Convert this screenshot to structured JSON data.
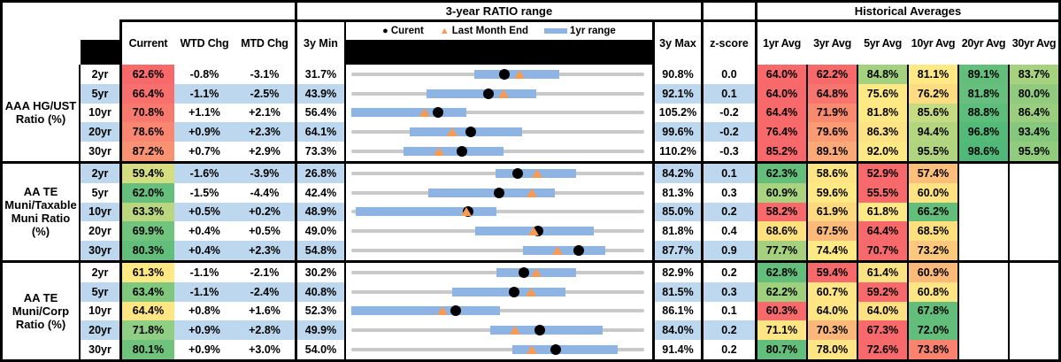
{
  "colors": {
    "stripe_blue": "#BDD7EE",
    "track_gray": "#C9C9C9",
    "range_bar_blue": "#8DB4E2",
    "marker_orange": "#F79B54",
    "marker_black": "#000000"
  },
  "header": {
    "range_section_title": "3-year RATIO range",
    "averages_section_title": "Historical Averages",
    "current": "Current",
    "wtd": "WTD Chg",
    "mtd": "MTD Chg",
    "min3y": "3y Min",
    "max3y": "3y Max",
    "zscore": "z-score",
    "avg_cols": [
      "1yr Avg",
      "3yr Avg",
      "5yr Avg",
      "10yr Avg",
      "20yr Avg",
      "30yr Avg"
    ]
  },
  "legend": {
    "current_label": "Curent",
    "last_month_end_label": "Last Month End",
    "range_label": "1yr range"
  },
  "chart_data": {
    "type": "table",
    "description": "Municipal bond ratio monitor: current ratios, weekly/monthly changes, 3-year min/max with 1yr-range dot plot (black dot = current, orange triangle = last month end, blue bar = 1yr range on an axis from 3y Min to 3y Max), z-scores and historical averages heatmap.",
    "groups": [
      {
        "label": "AAA HG/UST\nRatio (%)",
        "rows": [
          {
            "tenor": "2yr",
            "current": "62.6%",
            "current_bg": "#F8696B",
            "wtd_chg": "-0.8%",
            "mtd_chg": "-3.1%",
            "min_3y": "31.7%",
            "max_3y": "90.8%",
            "z_score": "0.0",
            "range_plot": {
              "axis_min": 31.7,
              "axis_max": 90.8,
              "current": 62.6,
              "last_month_end": 65.7,
              "range_1yr": [
                56.5,
                73.7
              ]
            },
            "avgs": [
              [
                "64.0%",
                "#F8696B"
              ],
              [
                "62.2%",
                "#F8696B"
              ],
              [
                "84.8%",
                "#A3D17F"
              ],
              [
                "81.1%",
                "#FFE984"
              ],
              [
                "89.1%",
                "#63BE7B"
              ],
              [
                "83.7%",
                "#A6D27F"
              ]
            ]
          },
          {
            "tenor": "5yr",
            "current": "66.4%",
            "current_bg": "#F8706D",
            "wtd_chg": "-1.1%",
            "mtd_chg": "-2.5%",
            "min_3y": "43.9%",
            "max_3y": "92.1%",
            "z_score": "0.1",
            "range_plot": {
              "axis_min": 43.9,
              "axis_max": 92.1,
              "current": 66.4,
              "last_month_end": 68.9,
              "range_1yr": [
                56.3,
                74.3
              ]
            },
            "avgs": [
              [
                "64.0%",
                "#F8696B"
              ],
              [
                "64.8%",
                "#F8746E"
              ],
              [
                "75.6%",
                "#FFE984"
              ],
              [
                "76.2%",
                "#FEDD82"
              ],
              [
                "81.8%",
                "#66BF7C"
              ],
              [
                "80.0%",
                "#8FCA7E"
              ]
            ]
          },
          {
            "tenor": "10yr",
            "current": "70.8%",
            "current_bg": "#F87A6F",
            "wtd_chg": "+1.1%",
            "mtd_chg": "+2.1%",
            "min_3y": "56.4%",
            "max_3y": "105.2%",
            "z_score": "-0.2",
            "range_plot": {
              "axis_min": 56.4,
              "axis_max": 105.2,
              "current": 70.8,
              "last_month_end": 68.7,
              "range_1yr": [
                56.4,
                75.5
              ]
            },
            "avgs": [
              [
                "64.4%",
                "#F8696B"
              ],
              [
                "71.9%",
                "#F98A70"
              ],
              [
                "81.8%",
                "#FFE984"
              ],
              [
                "85.6%",
                "#C4DB82"
              ],
              [
                "88.8%",
                "#5DBD7A"
              ],
              [
                "86.4%",
                "#9ACE7E"
              ]
            ]
          },
          {
            "tenor": "20yr",
            "current": "78.6%",
            "current_bg": "#F98671",
            "wtd_chg": "+0.9%",
            "mtd_chg": "+2.3%",
            "min_3y": "64.1%",
            "max_3y": "99.6%",
            "z_score": "-0.2",
            "range_plot": {
              "axis_min": 64.1,
              "axis_max": 99.6,
              "current": 78.6,
              "last_month_end": 76.3,
              "range_1yr": [
                71.2,
                84.8
              ]
            },
            "avgs": [
              [
                "76.4%",
                "#F8696B"
              ],
              [
                "79.6%",
                "#FA9B74"
              ],
              [
                "86.3%",
                "#FDE383"
              ],
              [
                "94.4%",
                "#B4D57F"
              ],
              [
                "96.8%",
                "#53BA79"
              ],
              [
                "93.4%",
                "#85C77D"
              ]
            ]
          },
          {
            "tenor": "30yr",
            "current": "87.2%",
            "current_bg": "#F99273",
            "wtd_chg": "+0.7%",
            "mtd_chg": "+2.9%",
            "min_3y": "73.3%",
            "max_3y": "110.2%",
            "z_score": "-0.3",
            "range_plot": {
              "axis_min": 73.3,
              "axis_max": 110.2,
              "current": 87.2,
              "last_month_end": 84.3,
              "range_1yr": [
                79.9,
                92.5
              ]
            },
            "avgs": [
              [
                "85.2%",
                "#F8696B"
              ],
              [
                "89.1%",
                "#FBAA77"
              ],
              [
                "92.0%",
                "#FFE984"
              ],
              [
                "95.5%",
                "#B0D47F"
              ],
              [
                "98.6%",
                "#50B979"
              ],
              [
                "95.9%",
                "#90CB7E"
              ]
            ]
          }
        ]
      },
      {
        "label": "AA TE\nMuni/Taxable\nMuni Ratio\n(%)",
        "rows": [
          {
            "tenor": "2yr",
            "current": "59.4%",
            "current_bg": "#D5DD81",
            "wtd_chg": "-1.6%",
            "mtd_chg": "-3.9%",
            "min_3y": "26.8%",
            "max_3y": "84.2%",
            "z_score": "0.1",
            "range_plot": {
              "axis_min": 26.8,
              "axis_max": 84.2,
              "current": 59.4,
              "last_month_end": 63.3,
              "range_1yr": [
                55.1,
                70.8
              ]
            },
            "avgs": [
              [
                "62.3%",
                "#63BE7B"
              ],
              [
                "58.6%",
                "#FFE483"
              ],
              [
                "52.9%",
                "#F8696B"
              ],
              [
                "57.4%",
                "#FCBF7B"
              ],
              null,
              null
            ]
          },
          {
            "tenor": "5yr",
            "current": "62.0%",
            "current_bg": "#66BF7C",
            "wtd_chg": "-1.5%",
            "mtd_chg": "-4.4%",
            "min_3y": "42.4%",
            "max_3y": "81.3%",
            "z_score": "0.3",
            "range_plot": {
              "axis_min": 42.4,
              "axis_max": 81.3,
              "current": 62.0,
              "last_month_end": 66.4,
              "range_1yr": [
                52.6,
                69.4
              ]
            },
            "avgs": [
              [
                "60.9%",
                "#A9D37F"
              ],
              [
                "59.6%",
                "#FFE984"
              ],
              [
                "55.5%",
                "#F8696B"
              ],
              [
                "60.0%",
                "#FFE281"
              ],
              null,
              null
            ]
          },
          {
            "tenor": "10yr",
            "current": "63.3%",
            "current_bg": "#BAD780",
            "wtd_chg": "+0.5%",
            "mtd_chg": "+0.2%",
            "min_3y": "48.9%",
            "max_3y": "85.0%",
            "z_score": "0.2",
            "range_plot": {
              "axis_min": 48.9,
              "axis_max": 85.0,
              "current": 63.3,
              "last_month_end": 63.1,
              "range_1yr": [
                49.4,
                66.8
              ]
            },
            "avgs": [
              [
                "58.2%",
                "#F8696B"
              ],
              [
                "61.9%",
                "#FFD97E"
              ],
              [
                "61.8%",
                "#FFE984"
              ],
              [
                "66.2%",
                "#63BE7B"
              ],
              null,
              null
            ]
          },
          {
            "tenor": "20yr",
            "current": "69.9%",
            "current_bg": "#72C37E",
            "wtd_chg": "+0.4%",
            "mtd_chg": "+0.5%",
            "min_3y": "49.0%",
            "max_3y": "81.8%",
            "z_score": "0.4",
            "range_plot": {
              "axis_min": 49.0,
              "axis_max": 81.8,
              "current": 69.9,
              "last_month_end": 69.4,
              "range_1yr": [
                62.9,
                76.2
              ]
            },
            "avgs": [
              [
                "68.6%",
                "#FFE07F"
              ],
              [
                "67.5%",
                "#FCBA7A"
              ],
              [
                "64.4%",
                "#F8696B"
              ],
              [
                "68.5%",
                "#FFDF7E"
              ],
              null,
              null
            ]
          },
          {
            "tenor": "30yr",
            "current": "80.3%",
            "current_bg": "#63BE7B",
            "wtd_chg": "+0.4%",
            "mtd_chg": "+2.3%",
            "min_3y": "54.8%",
            "max_3y": "87.7%",
            "z_score": "0.9",
            "range_plot": {
              "axis_min": 54.8,
              "axis_max": 87.7,
              "current": 80.3,
              "last_month_end": 78.0,
              "range_1yr": [
                74.1,
                83.3
              ]
            },
            "avgs": [
              [
                "77.7%",
                "#A5D17E"
              ],
              [
                "74.4%",
                "#FFE984"
              ],
              [
                "70.7%",
                "#F8696B"
              ],
              [
                "73.2%",
                "#FCC87D"
              ],
              null,
              null
            ]
          }
        ]
      },
      {
        "label": "AA TE\nMuni/Corp\nRatio (%)",
        "rows": [
          {
            "tenor": "2yr",
            "current": "61.3%",
            "current_bg": "#FFE984",
            "wtd_chg": "-1.1%",
            "mtd_chg": "-2.1%",
            "min_3y": "30.2%",
            "max_3y": "82.9%",
            "z_score": "0.2",
            "range_plot": {
              "axis_min": 30.2,
              "axis_max": 82.9,
              "current": 61.3,
              "last_month_end": 63.4,
              "range_1yr": [
                56.3,
                70.7
              ]
            },
            "avgs": [
              [
                "62.8%",
                "#63BE7B"
              ],
              [
                "59.4%",
                "#F8696B"
              ],
              [
                "61.4%",
                "#FBE282"
              ],
              [
                "60.9%",
                "#FBB97A"
              ],
              null,
              null
            ]
          },
          {
            "tenor": "5yr",
            "current": "63.4%",
            "current_bg": "#81C87F",
            "wtd_chg": "-1.1%",
            "mtd_chg": "-2.4%",
            "min_3y": "40.8%",
            "max_3y": "81.5%",
            "z_score": "0.3",
            "range_plot": {
              "axis_min": 40.8,
              "axis_max": 81.5,
              "current": 63.4,
              "last_month_end": 65.8,
              "range_1yr": [
                54.8,
                70.5
              ]
            },
            "avgs": [
              [
                "62.2%",
                "#9ED07E"
              ],
              [
                "60.7%",
                "#FFE583"
              ],
              [
                "59.2%",
                "#F8696B"
              ],
              [
                "60.8%",
                "#FFE583"
              ],
              null,
              null
            ]
          },
          {
            "tenor": "10yr",
            "current": "64.4%",
            "current_bg": "#FFE683",
            "wtd_chg": "+0.8%",
            "mtd_chg": "+1.6%",
            "min_3y": "52.3%",
            "max_3y": "86.1%",
            "z_score": "0.1",
            "range_plot": {
              "axis_min": 52.3,
              "axis_max": 86.1,
              "current": 64.4,
              "last_month_end": 62.8,
              "range_1yr": [
                52.3,
                69.5
              ]
            },
            "avgs": [
              [
                "60.3%",
                "#F8696B"
              ],
              [
                "64.0%",
                "#FFE583"
              ],
              [
                "64.0%",
                "#FFE181"
              ],
              [
                "67.8%",
                "#63BE7B"
              ],
              null,
              null
            ]
          },
          {
            "tenor": "20yr",
            "current": "71.8%",
            "current_bg": "#90CD85",
            "wtd_chg": "+0.9%",
            "mtd_chg": "+2.8%",
            "min_3y": "49.9%",
            "max_3y": "84.0%",
            "z_score": "0.2",
            "range_plot": {
              "axis_min": 49.9,
              "axis_max": 84.0,
              "current": 71.8,
              "last_month_end": 69.0,
              "range_1yr": [
                66.1,
                79.2
              ]
            },
            "avgs": [
              [
                "71.1%",
                "#FFE583"
              ],
              [
                "70.3%",
                "#FBB77A"
              ],
              [
                "67.3%",
                "#F8696B"
              ],
              [
                "72.0%",
                "#63BE7B"
              ],
              null,
              null
            ]
          },
          {
            "tenor": "30yr",
            "current": "80.1%",
            "current_bg": "#70C37D",
            "wtd_chg": "+0.9%",
            "mtd_chg": "+3.0%",
            "min_3y": "54.0%",
            "max_3y": "91.4%",
            "z_score": "0.2",
            "range_plot": {
              "axis_min": 54.0,
              "axis_max": 91.4,
              "current": 80.1,
              "last_month_end": 77.1,
              "range_1yr": [
                74.6,
                88.0
              ]
            },
            "avgs": [
              [
                "80.7%",
                "#63BE7B"
              ],
              [
                "78.0%",
                "#FFE583"
              ],
              [
                "72.6%",
                "#F8696B"
              ],
              [
                "73.8%",
                "#F9836F"
              ],
              null,
              null
            ]
          }
        ]
      }
    ]
  }
}
